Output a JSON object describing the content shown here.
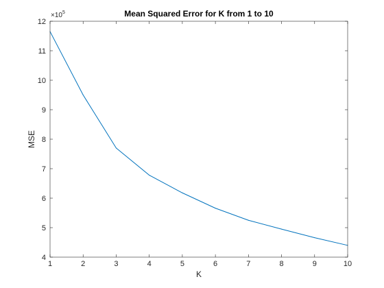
{
  "chart_data": {
    "type": "line",
    "title": "Mean Squared Error for K from 1 to 10",
    "xlabel": "K",
    "ylabel": "MSE",
    "y_exponent_base": "×10",
    "y_exponent_power": "5",
    "xlim": [
      1,
      10
    ],
    "ylim": [
      4,
      12
    ],
    "x_ticks": [
      1,
      2,
      3,
      4,
      5,
      6,
      7,
      8,
      9,
      10
    ],
    "y_ticks": [
      4,
      5,
      6,
      7,
      8,
      9,
      10,
      11,
      12
    ],
    "grid": false,
    "line_color": "#0072BD",
    "series": [
      {
        "x": [
          1,
          2,
          3,
          4,
          5,
          6,
          7,
          8,
          9,
          10
        ],
        "values": [
          11.65,
          9.5,
          7.7,
          6.78,
          6.18,
          5.66,
          5.25,
          4.95,
          4.66,
          4.4
        ]
      }
    ]
  }
}
